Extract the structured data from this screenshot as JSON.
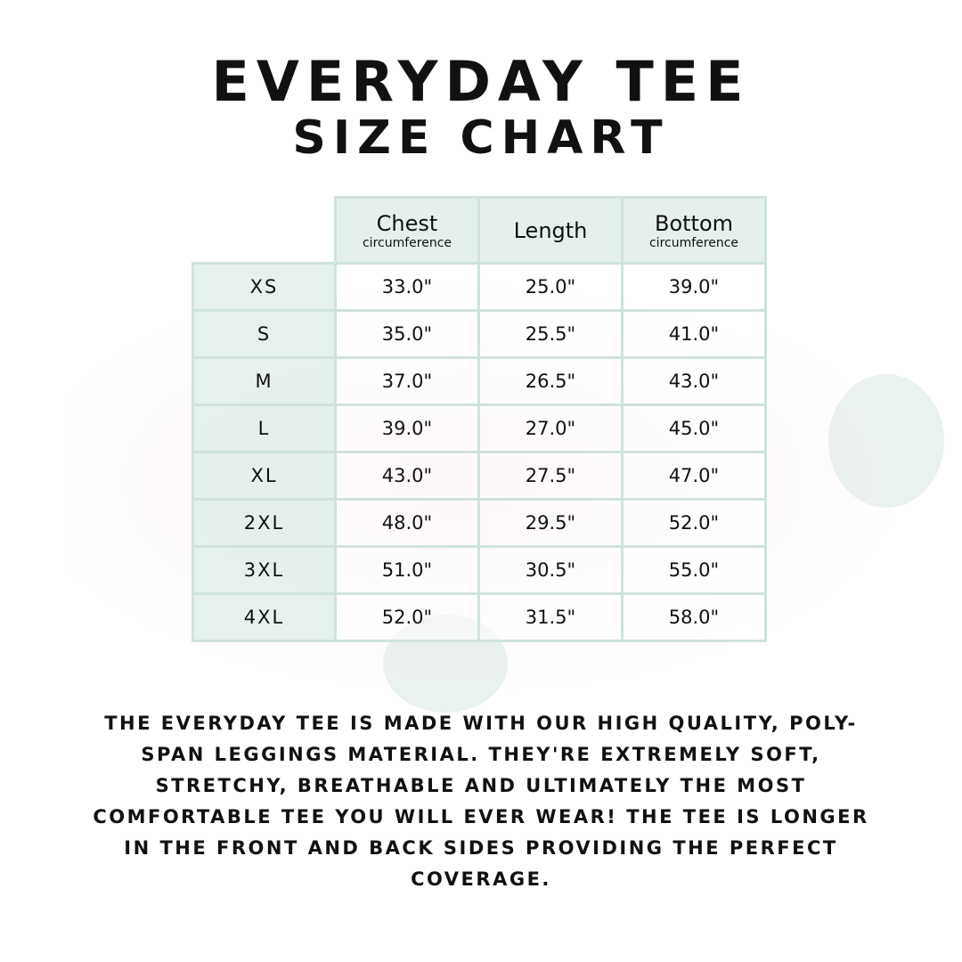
{
  "title_line1": "EVERYDAY TEE",
  "title_line2": "SIZE CHART",
  "columns": [
    {
      "label": "Chest",
      "sub": "circumference"
    },
    {
      "label": "Length",
      "sub": ""
    },
    {
      "label": "Bottom",
      "sub": "circumference"
    }
  ],
  "rows": [
    {
      "size": "XS",
      "chest": "33.0\"",
      "length": "25.0\"",
      "bottom": "39.0\""
    },
    {
      "size": "S",
      "chest": "35.0\"",
      "length": "25.5\"",
      "bottom": "41.0\""
    },
    {
      "size": "M",
      "chest": "37.0\"",
      "length": "26.5\"",
      "bottom": "43.0\""
    },
    {
      "size": "L",
      "chest": "39.0\"",
      "length": "27.0\"",
      "bottom": "45.0\""
    },
    {
      "size": "XL",
      "chest": "43.0\"",
      "length": "27.5\"",
      "bottom": "47.0\""
    },
    {
      "size": "2XL",
      "chest": "48.0\"",
      "length": "29.5\"",
      "bottom": "52.0\""
    },
    {
      "size": "3XL",
      "chest": "51.0\"",
      "length": "30.5\"",
      "bottom": "55.0\""
    },
    {
      "size": "4XL",
      "chest": "52.0\"",
      "length": "31.5\"",
      "bottom": "58.0\""
    }
  ],
  "description": "The Everyday Tee is made with our high quality, poly-span leggings material. They're extremely soft, stretchy, breathable and ultimately the most comfortable tee you will ever wear! The tee is longer in the front and back sides providing the perfect coverage.",
  "colors": {
    "grid": "#cfe3da",
    "header_fill": "#e2eee9"
  }
}
